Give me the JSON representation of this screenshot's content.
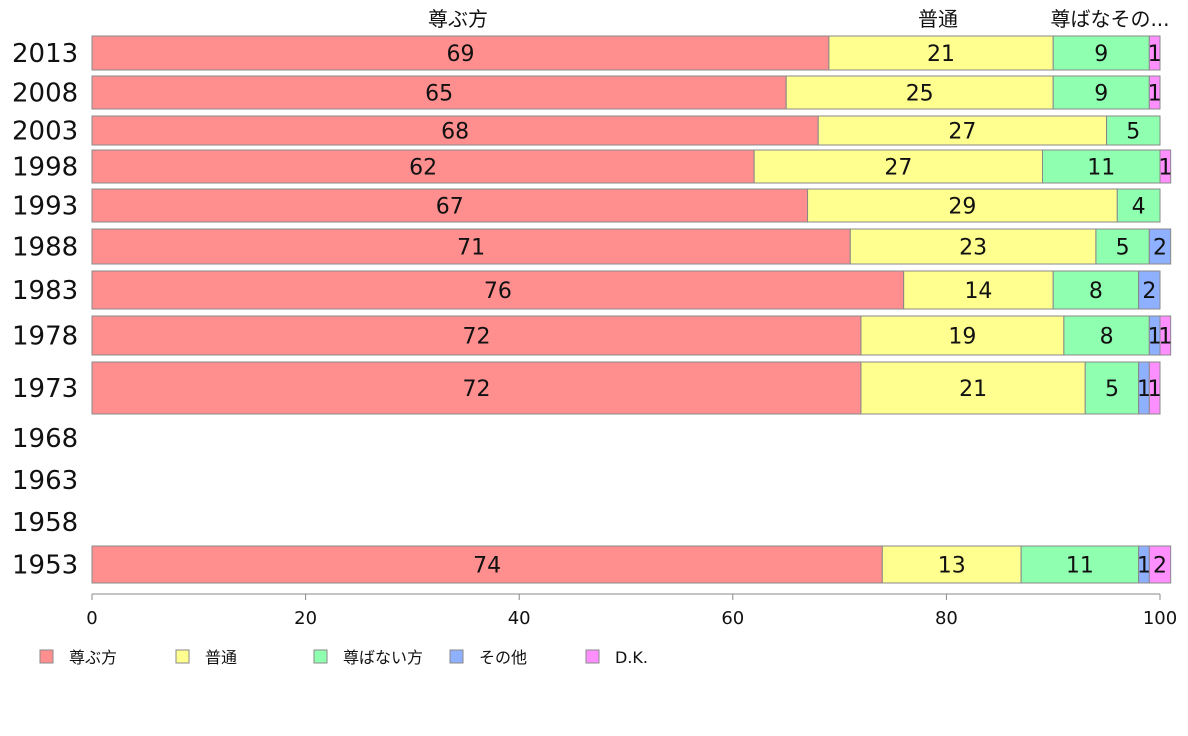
{
  "chart_data": {
    "type": "bar",
    "orientation": "horizontal",
    "stacked": true,
    "categories": [
      "2013",
      "2008",
      "2003",
      "1998",
      "1993",
      "1988",
      "1983",
      "1978",
      "1973",
      "1968",
      "1963",
      "1958",
      "1953"
    ],
    "series": [
      {
        "name": "尊ぶ方",
        "color": "#ff8f8f",
        "values": [
          69,
          65,
          68,
          62,
          67,
          71,
          76,
          72,
          72,
          null,
          null,
          null,
          74
        ]
      },
      {
        "name": "普通",
        "color": "#ffff8f",
        "values": [
          21,
          25,
          27,
          27,
          29,
          23,
          14,
          19,
          21,
          null,
          null,
          null,
          13
        ]
      },
      {
        "name": "尊ばない方",
        "color": "#8fffb0",
        "values": [
          9,
          9,
          5,
          11,
          4,
          5,
          8,
          8,
          5,
          null,
          null,
          null,
          11
        ]
      },
      {
        "name": "その他",
        "color": "#8fb0ff",
        "values": [
          0,
          0,
          0,
          0,
          0,
          2,
          2,
          1,
          1,
          null,
          null,
          null,
          1
        ]
      },
      {
        "name": "D.K.",
        "color": "#ff8fff",
        "values": [
          1,
          1,
          0,
          1,
          0,
          0,
          0,
          1,
          1,
          null,
          null,
          null,
          2
        ]
      }
    ],
    "top_labels": [
      "尊ぶ方",
      "普通",
      "尊ばなその..."
    ],
    "xlim": [
      0,
      100
    ],
    "xticks": [
      "0",
      "20",
      "40",
      "60",
      "80",
      "100"
    ],
    "grid": false,
    "legend_placement": "bottom-left"
  }
}
